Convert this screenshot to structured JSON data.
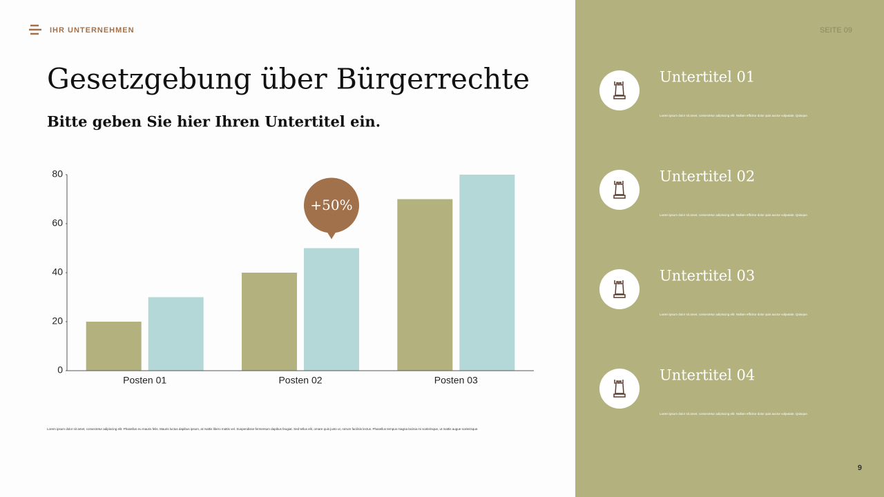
{
  "header": {
    "company": "IHR UNTERNEHMEN",
    "page": "SEITE 09"
  },
  "title": "Gesetzgebung über Bürgerrechte",
  "subtitle": "Bitte geben Sie hier Ihren Untertitel ein.",
  "chart_data": {
    "type": "bar",
    "categories": [
      "Posten 01",
      "Posten 02",
      "Posten 03"
    ],
    "series": [
      {
        "color": "#b3b27e",
        "values": [
          20,
          40,
          70
        ]
      },
      {
        "color": "#b4d8d8",
        "values": [
          30,
          50,
          80
        ]
      }
    ],
    "ylim": [
      0,
      80
    ],
    "yticks": [
      0,
      20,
      40,
      60,
      80
    ],
    "annotation": {
      "text": "+50%",
      "series": 1,
      "index": 1,
      "color": "#a0714b"
    }
  },
  "footnote": "Lorem ipsum dolor sit amet, consectetur adipiscing elit. Phasellus eu mauris felis. Mauris luctus dapibus ipsum, at mattis libero mattis vel. Suspendisse fermentum dapibus feugiat. Sed tellus elit, ornare quis justo ut, rutrum facilisis lectus. Phasellus tempus magna lacinia mi scelerisque, ut mattis augue scelerisque.",
  "items": [
    {
      "title": "Untertitel 01",
      "text": "Lorem ipsum dolor sit amet, consectetur adipiscing elit. Nullam efficitur dolor quis auctor vulputate. Quisque."
    },
    {
      "title": "Untertitel 02",
      "text": "Lorem ipsum dolor sit amet, consectetur adipiscing elit. Nullam efficitur dolor quis auctor vulputate. Quisque."
    },
    {
      "title": "Untertitel 03",
      "text": "Lorem ipsum dolor sit amet, consectetur adipiscing elit. Nullam efficitur dolor quis auctor vulputate. Quisque."
    },
    {
      "title": "Untertitel 04",
      "text": "Lorem ipsum dolor sit amet, consectetur adipiscing elit. Nullam efficitur dolor quis auctor vulputate. Quisque."
    }
  ],
  "page_number": "9"
}
